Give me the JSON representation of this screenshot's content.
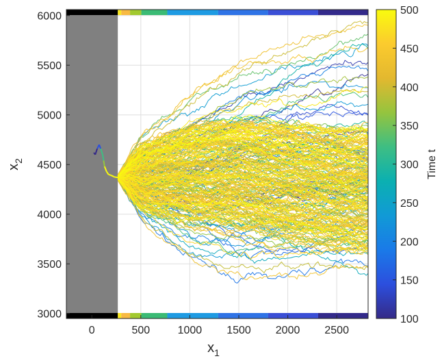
{
  "chart_data": {
    "type": "line",
    "title": "",
    "xlabel": "x",
    "xlabel_subscript": "1",
    "ylabel": "x",
    "ylabel_subscript": "2",
    "xlim": [
      -260,
      2820
    ],
    "ylim": [
      2950,
      6060
    ],
    "xticks": [
      0,
      500,
      1000,
      1500,
      2000,
      2500
    ],
    "yticks": [
      3000,
      3500,
      4000,
      4500,
      5000,
      5500,
      6000
    ],
    "grid": true,
    "background_color": "#ffffff",
    "shaded_region": {
      "x_range": [
        -260,
        265
      ],
      "color": "#808080"
    },
    "origin_point": {
      "x": 265,
      "y": 4370
    },
    "early_trajectory": {
      "x": [
        20,
        35,
        55,
        75,
        90,
        110,
        120,
        130,
        150,
        170,
        200,
        230,
        265
      ],
      "y": [
        4620,
        4600,
        4660,
        4700,
        4660,
        4600,
        4540,
        4480,
        4430,
        4400,
        4390,
        4375,
        4370
      ]
    },
    "trajectory_envelope": {
      "x": [
        265,
        500,
        1000,
        1500,
        2000,
        2500,
        2800
      ],
      "upper_y": [
        4400,
        4800,
        5250,
        5650,
        5800,
        5900,
        5950
      ],
      "lower_y": [
        4340,
        3950,
        3550,
        3350,
        3350,
        3370,
        3380
      ],
      "dense_upper_y": [
        4390,
        4700,
        4900,
        4950,
        4900,
        4850,
        4850
      ],
      "dense_lower_y": [
        4350,
        4050,
        3950,
        3900,
        3750,
        3650,
        3600
      ]
    },
    "time_segments_bar": {
      "x_edges": [
        -260,
        265,
        300,
        390,
        505,
        770,
        1290,
        1800,
        2310,
        2820
      ],
      "colors": [
        "#000000",
        "#f9e721",
        "#f8ba43",
        "#a2c92f",
        "#3bbb75",
        "#1e9be3",
        "#2f73e6",
        "#3b4fd6",
        "#332a8b"
      ]
    },
    "series": [
      {
        "name": "",
        "color": "#fde725",
        "t": 500
      }
    ],
    "colorbar": {
      "label": "Time t",
      "range": [
        100,
        500
      ],
      "ticks": [
        100,
        150,
        200,
        250,
        300,
        350,
        400,
        450,
        500
      ],
      "colormap": [
        "#352a87",
        "#2c4fde",
        "#1a7ae8",
        "#119ad6",
        "#0bb0b1",
        "#3ebe83",
        "#95c43e",
        "#e3b82f",
        "#fbcb2e",
        "#f9fb0e"
      ]
    }
  }
}
